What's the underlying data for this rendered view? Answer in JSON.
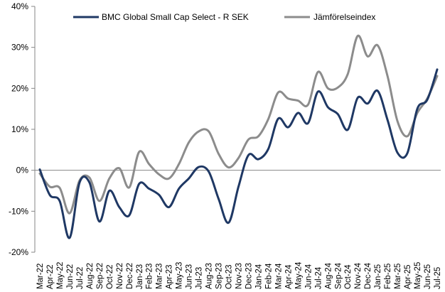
{
  "chart_data": {
    "type": "line",
    "title": "",
    "xlabel": "",
    "ylabel": "",
    "ylim": [
      -20,
      40
    ],
    "yticks": [
      40,
      30,
      20,
      10,
      0,
      -10,
      -20
    ],
    "ytick_labels": [
      "40%",
      "30%",
      "20%",
      "10%",
      "0%",
      "-10%",
      "-20%"
    ],
    "grid": false,
    "legend_position": "top",
    "x": [
      "Mar-22",
      "Apr-22",
      "May-22",
      "Jun-22",
      "Jul-22",
      "Aug-22",
      "Sep-22",
      "Oct-22",
      "Nov-22",
      "Dec-22",
      "Jan-23",
      "Feb-23",
      "Mar-23",
      "Apr-23",
      "May-23",
      "Jun-23",
      "Jul-23",
      "Aug-23",
      "Sep-23",
      "Oct-23",
      "Nov-23",
      "Dec-23",
      "Jan-24",
      "Feb-24",
      "Mar-24",
      "Apr-24",
      "May-24",
      "Jun-24",
      "Jul-24",
      "Aug-24",
      "Sep-24",
      "Oct-24",
      "Nov-24",
      "Dec-24",
      "Jan-25",
      "Feb-25",
      "Mar-25",
      "Apr-25",
      "May-25",
      "Jun-25",
      "Jul-25"
    ],
    "series": [
      {
        "name": "BMC Global Small Cap Select - R SEK",
        "color": "#1f3864",
        "values": [
          0.2,
          -6,
          -7.5,
          -16.5,
          -3,
          -3,
          -12.5,
          -5,
          -9,
          -11,
          -3.3,
          -4.5,
          -6,
          -9,
          -4.5,
          -2,
          0.8,
          -0.3,
          -7,
          -12.8,
          -4,
          3.7,
          2.7,
          5.2,
          12.6,
          10.5,
          14,
          11.5,
          19.2,
          15.4,
          13.7,
          9.9,
          17.7,
          16.3,
          19.4,
          12.3,
          4.3,
          4.2,
          15,
          17.2,
          24.6
        ]
      },
      {
        "name": "Jämförelseindex",
        "color": "#8c8c8c",
        "values": [
          -0.8,
          -4,
          -4.3,
          -10.5,
          -2.5,
          -1.8,
          -7.5,
          -2,
          0.5,
          -4.2,
          4.5,
          1.5,
          -1,
          -2,
          1.5,
          6.8,
          9.5,
          9.5,
          4,
          0.7,
          3,
          7.5,
          8.3,
          12.5,
          19,
          17.5,
          17,
          16,
          24,
          20,
          20.2,
          23.5,
          32.8,
          27.8,
          30.5,
          23,
          12,
          8.3,
          14,
          17.5,
          23
        ]
      }
    ]
  }
}
